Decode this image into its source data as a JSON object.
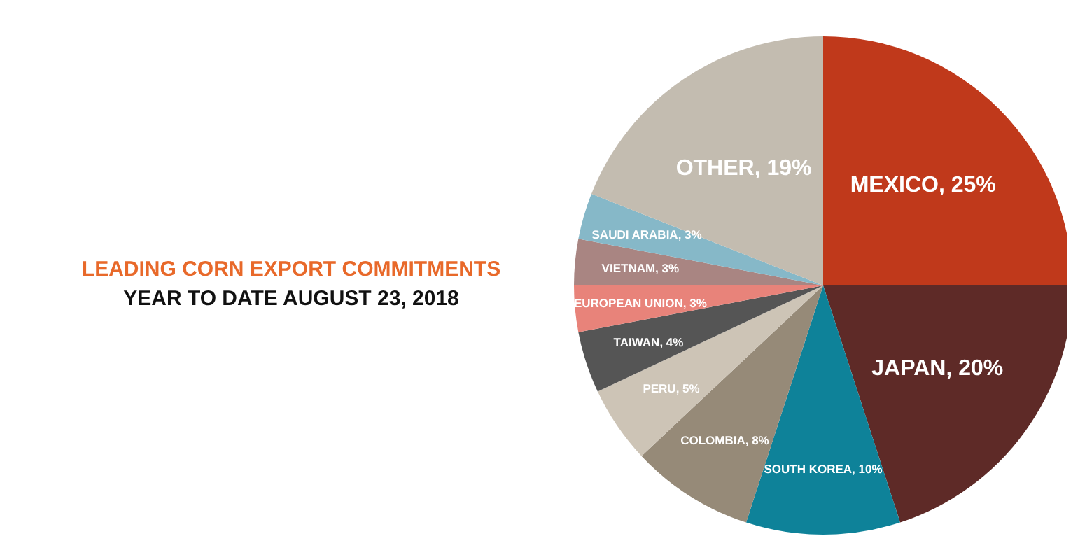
{
  "chart_data": {
    "type": "pie",
    "title": "LEADING CORN EXPORT COMMITMENTS",
    "subtitle": "YEAR TO DATE AUGUST 23, 2018",
    "categories": [
      "MEXICO",
      "JAPAN",
      "SOUTH KOREA",
      "COLOMBIA",
      "PERU",
      "TAIWAN",
      "EUROPEAN UNION",
      "VIETNAM",
      "SAUDI ARABIA",
      "OTHER"
    ],
    "values": [
      25,
      20,
      10,
      8,
      5,
      4,
      3,
      3,
      3,
      19
    ],
    "value_labels": [
      "25%",
      "20%",
      "10%",
      "8%",
      "5%",
      "4%",
      "3%",
      "3%",
      "3%",
      "19%"
    ],
    "colors": [
      "#c0391b",
      "#5e2a27",
      "#0e8299",
      "#968a78",
      "#cdc4b6",
      "#555555",
      "#e8837a",
      "#a98582",
      "#86b8c8",
      "#c3bcb0"
    ],
    "legend": false
  }
}
